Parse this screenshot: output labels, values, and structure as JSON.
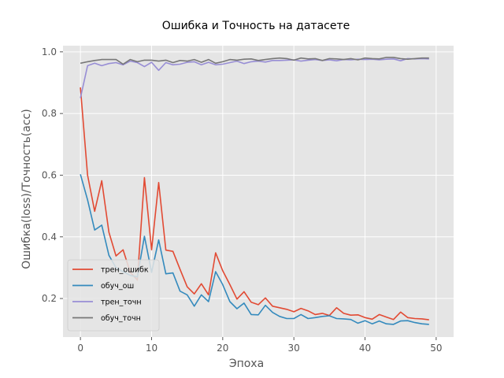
{
  "chart_data": {
    "type": "line",
    "title": "Ошибка и Точность на датасете",
    "xlabel": "Эпоха",
    "ylabel": "Ошибка(loss)/Точность(acc)",
    "xlim": [
      -2.45,
      52.45
    ],
    "ylim": [
      0.075,
      1.02
    ],
    "xticks": [
      0,
      10,
      20,
      30,
      40,
      50
    ],
    "yticks": [
      0.2,
      0.4,
      0.6,
      0.8,
      1.0
    ],
    "ytick_labels": [
      "0.2",
      "0.4",
      "0.6",
      "0.8",
      "1.0"
    ],
    "grid": true,
    "legend_position": "lower-left",
    "x": [
      0,
      1,
      2,
      3,
      4,
      5,
      6,
      7,
      8,
      9,
      10,
      11,
      12,
      13,
      14,
      15,
      16,
      17,
      18,
      19,
      20,
      21,
      22,
      23,
      24,
      25,
      26,
      27,
      28,
      29,
      30,
      31,
      32,
      33,
      34,
      35,
      36,
      37,
      38,
      39,
      40,
      41,
      42,
      43,
      44,
      45,
      46,
      47,
      48,
      49
    ],
    "series": [
      {
        "name": "трен_ошибк",
        "color": "#e24a33",
        "values": [
          0.885,
          0.6,
          0.483,
          0.582,
          0.415,
          0.338,
          0.358,
          0.285,
          0.26,
          0.592,
          0.358,
          0.576,
          0.357,
          0.353,
          0.295,
          0.238,
          0.215,
          0.248,
          0.212,
          0.348,
          0.29,
          0.245,
          0.198,
          0.222,
          0.188,
          0.18,
          0.202,
          0.175,
          0.17,
          0.165,
          0.157,
          0.168,
          0.16,
          0.148,
          0.152,
          0.145,
          0.17,
          0.152,
          0.146,
          0.147,
          0.138,
          0.133,
          0.148,
          0.14,
          0.132,
          0.156,
          0.138,
          0.135,
          0.134,
          0.131
        ]
      },
      {
        "name": "обуч_ош",
        "color": "#348abd",
        "values": [
          0.603,
          0.52,
          0.422,
          0.438,
          0.34,
          0.3,
          0.287,
          0.275,
          0.27,
          0.402,
          0.285,
          0.39,
          0.28,
          0.283,
          0.224,
          0.212,
          0.175,
          0.212,
          0.19,
          0.287,
          0.245,
          0.19,
          0.167,
          0.185,
          0.148,
          0.147,
          0.178,
          0.155,
          0.142,
          0.135,
          0.135,
          0.148,
          0.135,
          0.138,
          0.142,
          0.144,
          0.135,
          0.134,
          0.132,
          0.12,
          0.128,
          0.118,
          0.127,
          0.118,
          0.116,
          0.127,
          0.128,
          0.122,
          0.118,
          0.116
        ]
      },
      {
        "name": "трен_точн",
        "color": "#988ed5",
        "values": [
          0.85,
          0.955,
          0.963,
          0.955,
          0.962,
          0.965,
          0.958,
          0.97,
          0.965,
          0.952,
          0.966,
          0.94,
          0.965,
          0.958,
          0.96,
          0.966,
          0.968,
          0.958,
          0.966,
          0.958,
          0.96,
          0.965,
          0.97,
          0.962,
          0.968,
          0.97,
          0.967,
          0.972,
          0.972,
          0.973,
          0.974,
          0.97,
          0.973,
          0.975,
          0.972,
          0.974,
          0.971,
          0.975,
          0.974,
          0.976,
          0.975,
          0.976,
          0.974,
          0.976,
          0.977,
          0.971,
          0.978,
          0.977,
          0.978,
          0.977
        ]
      },
      {
        "name": "обуч_точн",
        "color": "#777777",
        "values": [
          0.963,
          0.968,
          0.972,
          0.975,
          0.975,
          0.975,
          0.96,
          0.975,
          0.968,
          0.973,
          0.973,
          0.97,
          0.973,
          0.965,
          0.972,
          0.97,
          0.975,
          0.966,
          0.975,
          0.963,
          0.968,
          0.975,
          0.973,
          0.976,
          0.977,
          0.972,
          0.975,
          0.978,
          0.98,
          0.978,
          0.973,
          0.98,
          0.977,
          0.978,
          0.972,
          0.978,
          0.977,
          0.975,
          0.978,
          0.974,
          0.98,
          0.978,
          0.977,
          0.982,
          0.982,
          0.978,
          0.976,
          0.978,
          0.98,
          0.98
        ]
      }
    ]
  }
}
